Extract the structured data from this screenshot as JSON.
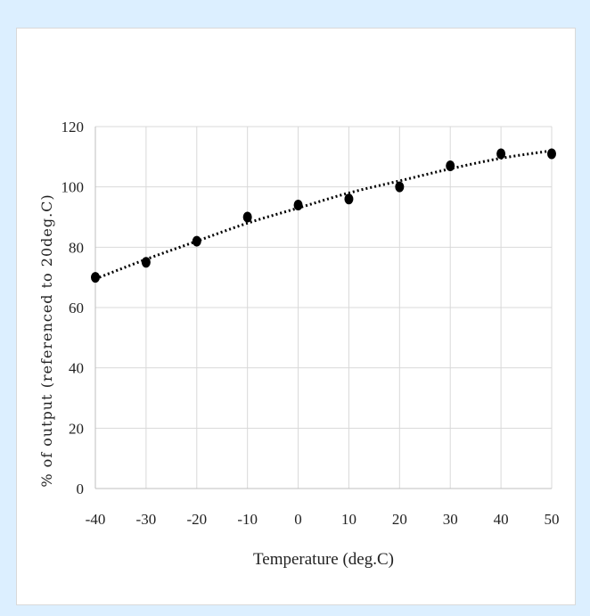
{
  "chart_data": {
    "type": "scatter",
    "title": "",
    "xlabel": "Temperature (deg.C)",
    "ylabel": "% of output (referenced to 20deg.C)",
    "xlim": [
      -40,
      50
    ],
    "ylim": [
      0,
      120
    ],
    "x_ticks": [
      -40,
      -30,
      -20,
      -10,
      0,
      10,
      20,
      30,
      40,
      50
    ],
    "y_ticks": [
      0,
      20,
      40,
      60,
      80,
      100,
      120
    ],
    "grid": true,
    "legend": "none",
    "series": [
      {
        "x": [
          -40,
          -30,
          -20,
          -10,
          0,
          10,
          20,
          30,
          40,
          50
        ],
        "y": [
          70,
          75,
          82,
          90,
          94,
          96,
          100,
          107,
          111,
          111
        ],
        "marker": "circle",
        "color": "#000000"
      }
    ],
    "trendline": {
      "style": "dotted",
      "color": "#000000",
      "x": [
        -40,
        -30,
        -20,
        -10,
        0,
        10,
        20,
        30,
        40,
        50
      ],
      "y": [
        69.5,
        76,
        82,
        88,
        93,
        98,
        102,
        106,
        109.5,
        112
      ]
    }
  }
}
